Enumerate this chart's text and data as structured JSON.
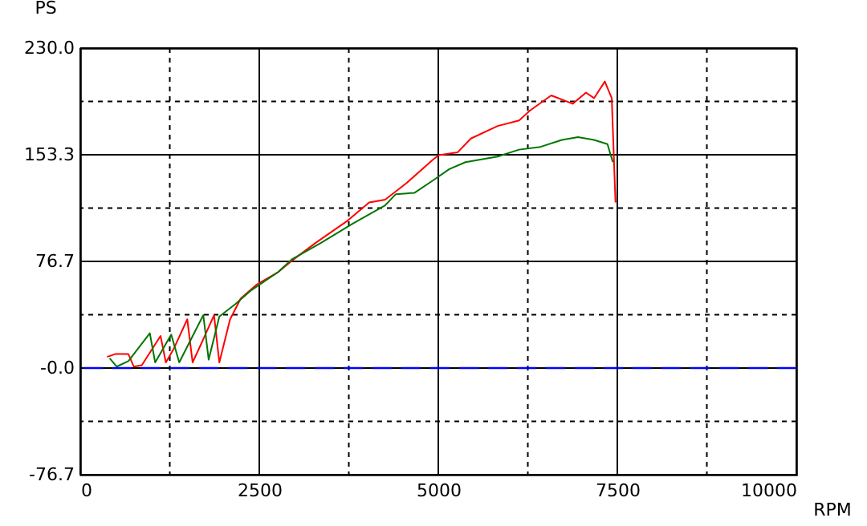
{
  "chart_data": {
    "type": "line",
    "xlabel": "RPM",
    "ylabel": "PS",
    "xlim": [
      0,
      10000
    ],
    "ylim": [
      -76.7,
      230
    ],
    "xticks": [
      0,
      {
        "value": 1250,
        "label": null
      },
      2500,
      {
        "value": 3750,
        "label": null
      },
      5000,
      {
        "value": 6250,
        "label": null
      },
      7500,
      {
        "value": 8750,
        "label": null
      },
      10000
    ],
    "yticks": [
      {
        "value": -76.7,
        "label": "-76.7"
      },
      {
        "value": -38.35,
        "label": null
      },
      {
        "value": 0,
        "label": "-0.0"
      },
      {
        "value": 38.35,
        "label": null
      },
      {
        "value": 76.7,
        "label": "76.7"
      },
      {
        "value": 115,
        "label": null
      },
      {
        "value": 153.3,
        "label": "153.3"
      },
      {
        "value": 191.65,
        "label": null
      },
      {
        "value": 230,
        "label": "230.0"
      }
    ],
    "grid": true,
    "ref_lines": [
      {
        "axis": "y",
        "value": 0,
        "color": "#0000ff",
        "line_style": "dashed"
      }
    ],
    "series": [
      {
        "color": "#ff0000",
        "x": [
          374,
          486,
          672,
          747,
          859,
          1008,
          1121,
          1195,
          1307,
          1494,
          1569,
          1703,
          1868,
          1942,
          2092,
          2241,
          2465,
          2764,
          2951,
          3287,
          3735,
          4034,
          4258,
          4557,
          4930,
          5007,
          5268,
          5455,
          5829,
          6128,
          6278,
          6577,
          6876,
          7063,
          7175,
          7325,
          7422,
          7474
        ],
        "values": [
          8,
          10,
          10,
          1,
          2,
          14,
          23,
          4,
          14,
          35,
          4,
          19,
          38,
          4,
          35,
          50,
          60,
          69,
          77,
          90,
          106,
          119,
          121,
          133,
          150,
          153,
          155,
          165,
          174,
          178,
          185,
          196,
          190,
          198,
          194,
          206,
          194,
          119
        ]
      },
      {
        "color": "#007700",
        "x": [
          411,
          508,
          672,
          971,
          1046,
          1270,
          1382,
          1718,
          1793,
          1942,
          2166,
          2390,
          2764,
          2951,
          3362,
          3810,
          4258,
          4407,
          4669,
          4930,
          5154,
          5380,
          5829,
          6128,
          6427,
          6726,
          6951,
          7175,
          7362,
          7437
        ],
        "values": [
          7,
          1,
          5,
          25,
          4,
          24,
          4,
          38,
          6,
          37,
          46,
          56,
          69,
          78,
          90,
          104,
          117,
          125,
          126,
          135,
          143,
          148,
          152,
          157,
          159,
          164,
          166,
          164,
          161,
          148
        ]
      }
    ]
  }
}
